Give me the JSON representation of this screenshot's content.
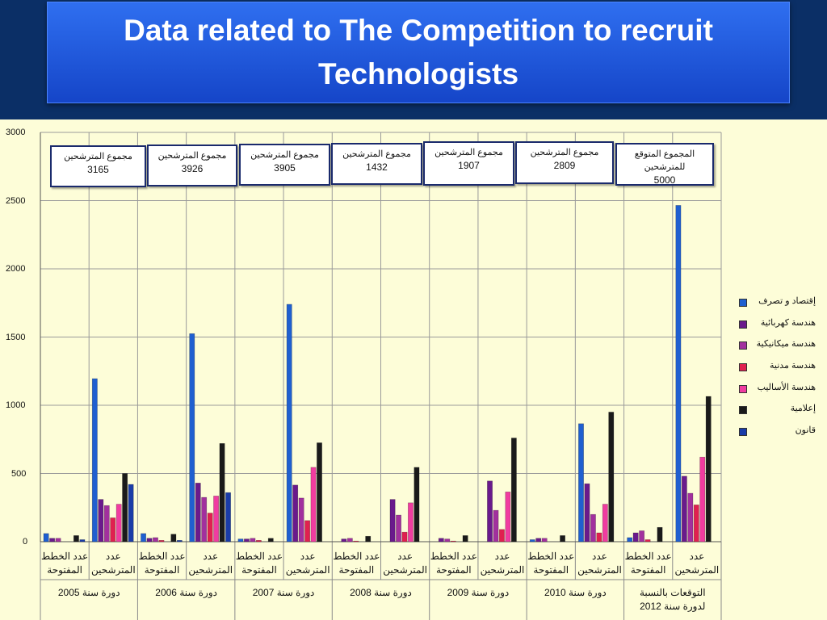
{
  "title": "Data related to The Competition to recruit Technologists",
  "callouts": [
    {
      "label": "مجموع المترشحين",
      "value": "3165"
    },
    {
      "label": "مجموع المترشحين",
      "value": "3926"
    },
    {
      "label": "مجموع المترشحين",
      "value": "3905"
    },
    {
      "label": "مجموع المترشحين",
      "value": "1432"
    },
    {
      "label": "مجموع المترشحين",
      "value": "1907"
    },
    {
      "label": "مجموع المترشحين",
      "value": "2809"
    },
    {
      "label": "المجموع المتوقع   للمترشحين",
      "value": "5000"
    }
  ],
  "chart_data": {
    "type": "bar",
    "ylim": [
      0,
      3000
    ],
    "yticks": [
      0,
      500,
      1000,
      1500,
      2000,
      2500,
      3000
    ],
    "grid": true,
    "legend_position": "right",
    "groups": [
      "دورة سنة 2005",
      "دورة سنة 2006",
      "دورة سنة 2007",
      "دورة سنة 2008",
      "دورة سنة 2009",
      "دورة سنة 2010",
      "التوقعات بالنسبة لدورة سنة 2012"
    ],
    "subcategories": [
      "عدد الخطط المفتوحة",
      "عدد المترشحين"
    ],
    "series": [
      {
        "name": "إقتصاد و تصرف",
        "color": "#1f5fd0",
        "values": [
          60,
          1195,
          60,
          1525,
          20,
          1740,
          0,
          0,
          0,
          0,
          15,
          865,
          30,
          2465
        ]
      },
      {
        "name": "هندسة كهربائية",
        "color": "#6a1a8c",
        "values": [
          25,
          310,
          25,
          430,
          20,
          415,
          20,
          310,
          25,
          445,
          25,
          425,
          65,
          480
        ]
      },
      {
        "name": "هندسة ميكانيكية",
        "color": "#a2309e",
        "values": [
          25,
          265,
          30,
          325,
          25,
          320,
          25,
          195,
          20,
          230,
          25,
          200,
          80,
          355
        ]
      },
      {
        "name": "هندسة مدنية",
        "color": "#e02050",
        "values": [
          0,
          175,
          10,
          210,
          10,
          155,
          5,
          70,
          5,
          90,
          0,
          65,
          15,
          270
        ]
      },
      {
        "name": "هندسة الأساليب",
        "color": "#f03ca0",
        "values": [
          0,
          275,
          0,
          335,
          0,
          545,
          0,
          285,
          0,
          365,
          0,
          275,
          0,
          620
        ]
      },
      {
        "name": "إعلامية",
        "color": "#1a1a1a",
        "values": [
          45,
          500,
          55,
          720,
          25,
          725,
          40,
          545,
          45,
          760,
          45,
          950,
          105,
          1065
        ]
      },
      {
        "name": "قانون",
        "color": "#1a3ca8",
        "values": [
          15,
          420,
          10,
          360,
          0,
          0,
          0,
          0,
          0,
          0,
          0,
          0,
          0,
          0
        ]
      }
    ]
  }
}
